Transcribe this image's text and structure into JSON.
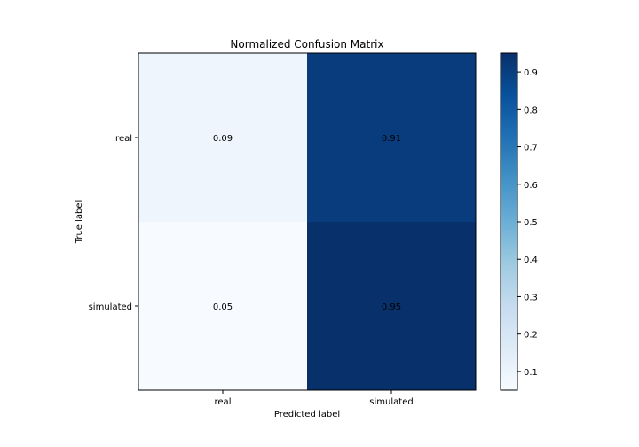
{
  "chart_data": {
    "type": "heatmap",
    "title": "Normalized Confusion Matrix",
    "xlabel": "Predicted label",
    "ylabel": "True label",
    "x_categories": [
      "real",
      "simulated"
    ],
    "y_categories": [
      "real",
      "simulated"
    ],
    "values": [
      [
        0.09,
        0.91
      ],
      [
        0.05,
        0.95
      ]
    ],
    "value_labels": [
      [
        "0.09",
        "0.91"
      ],
      [
        "0.05",
        "0.95"
      ]
    ],
    "colormap": "Blues",
    "colorbar": {
      "min": 0.05,
      "max": 0.95,
      "ticks": [
        0.1,
        0.2,
        0.3,
        0.4,
        0.5,
        0.6,
        0.7,
        0.8,
        0.9
      ],
      "tick_labels": [
        "0.1",
        "0.2",
        "0.3",
        "0.4",
        "0.5",
        "0.6",
        "0.7",
        "0.8",
        "0.9"
      ]
    },
    "grid": false
  }
}
